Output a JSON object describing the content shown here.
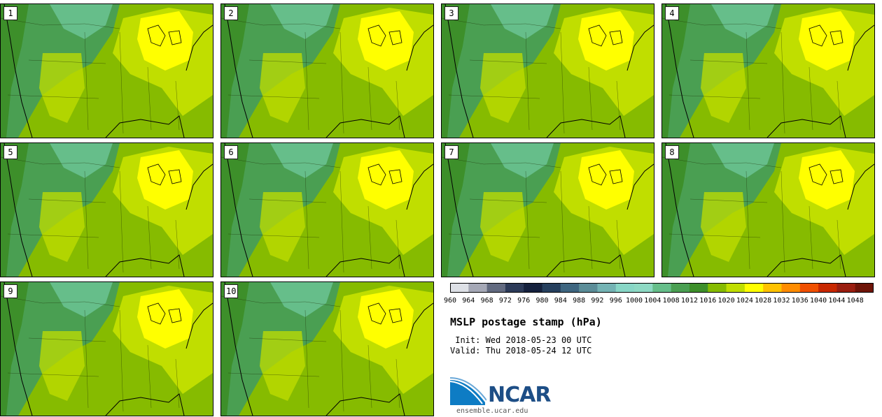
{
  "panels": [
    {
      "label": "1"
    },
    {
      "label": "2"
    },
    {
      "label": "3"
    },
    {
      "label": "4"
    },
    {
      "label": "5"
    },
    {
      "label": "6"
    },
    {
      "label": "7"
    },
    {
      "label": "8"
    },
    {
      "label": "9"
    },
    {
      "label": "10"
    }
  ],
  "colorbar": {
    "values": [
      "960",
      "964",
      "968",
      "972",
      "976",
      "980",
      "984",
      "988",
      "992",
      "996",
      "1000",
      "1004",
      "1008",
      "1012",
      "1016",
      "1020",
      "1024",
      "1028",
      "1032",
      "1036",
      "1040",
      "1044",
      "1048"
    ],
    "colors": [
      "#dde0e6",
      "#a5a8b6",
      "#626a80",
      "#2c3a58",
      "#15213d",
      "#26405e",
      "#3e6680",
      "#5b8d98",
      "#74b3b4",
      "#88d6c6",
      "#8ed9c4",
      "#66be8a",
      "#4a9f52",
      "#3d8f2a",
      "#86bb00",
      "#c0de00",
      "#ffff00",
      "#ffc200",
      "#ff8c00",
      "#f05000",
      "#c82800",
      "#9a1e10",
      "#6e1408"
    ]
  },
  "title": "MSLP postage stamp (hPa)",
  "init": " Init: Wed 2018-05-23 00 UTC",
  "valid": "Valid: Thu 2018-05-24 12 UTC",
  "logo": {
    "name": "NCAR",
    "url": "ensemble.ucar.edu"
  },
  "map_colors": {
    "base": "#86bb00",
    "dark": "#3d8f2a",
    "mid": "#4a9f52",
    "light": "#66be8a",
    "pale": "#c0de00",
    "high": "#ffff00",
    "peak": "#ffc200"
  }
}
